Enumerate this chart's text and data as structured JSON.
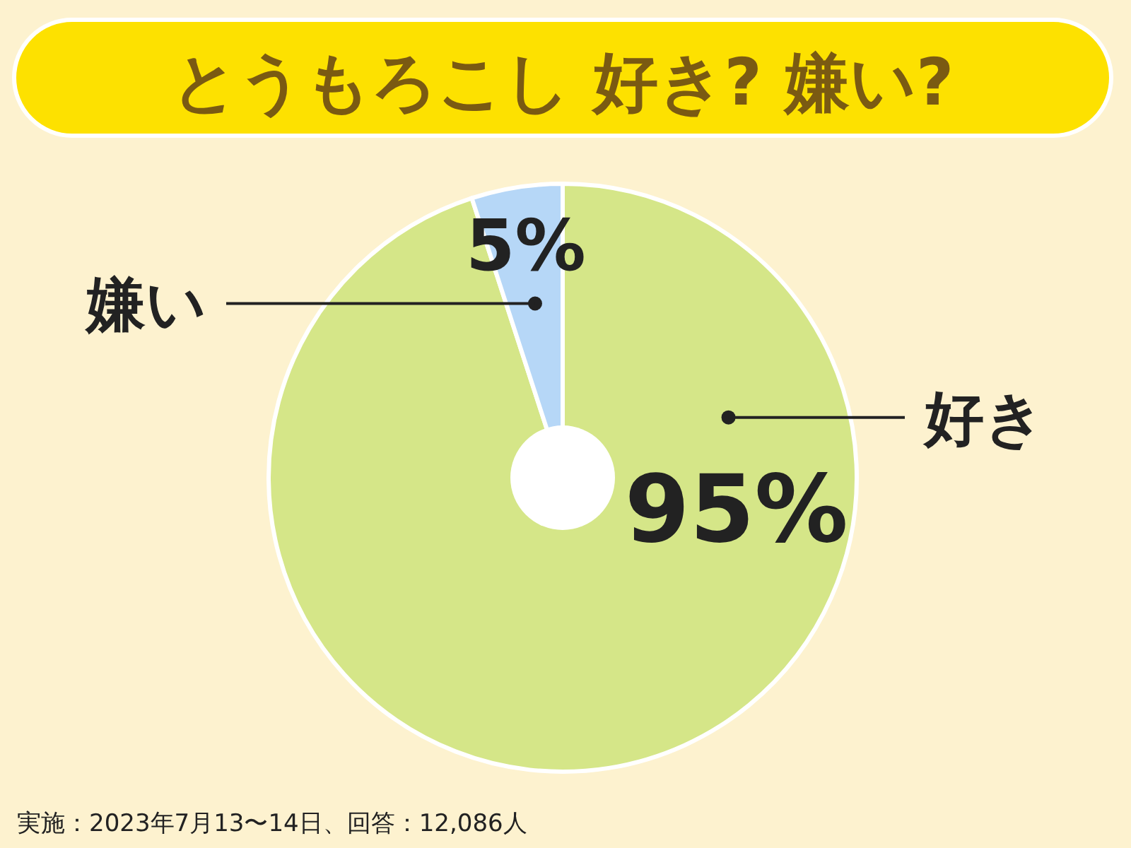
{
  "chart_data": {
    "type": "pie",
    "title": "とうもろこし 好き? 嫌い?",
    "categories": [
      "好き",
      "嫌い"
    ],
    "values": [
      95,
      5
    ],
    "colors": [
      "#d5e688",
      "#b6d7f7"
    ],
    "value_labels": [
      "95%",
      "5%"
    ],
    "annotations": [
      "実施：2023年7月13〜14日、回答：12,086人"
    ]
  }
}
